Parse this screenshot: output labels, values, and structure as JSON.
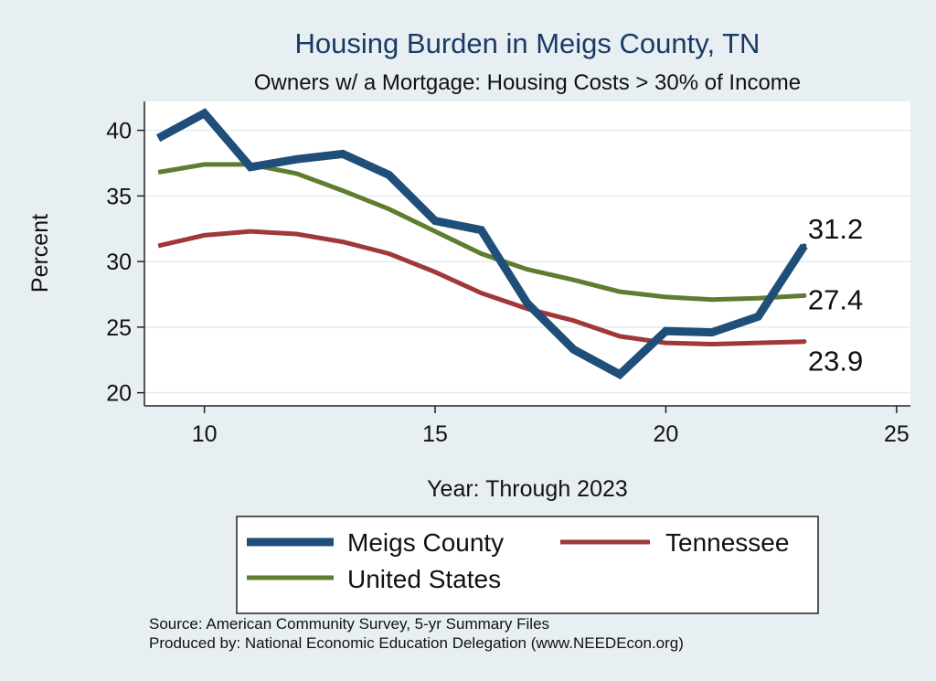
{
  "chart_data": {
    "type": "line",
    "title": "Housing Burden in Meigs County, TN",
    "subtitle": "Owners w/ a Mortgage: Housing Costs > 30% of Income",
    "xlabel": "Year: Through 2023",
    "ylabel": "Percent",
    "xlim": [
      8.7,
      25.3
    ],
    "ylim": [
      19.0,
      42.2
    ],
    "xticks": [
      10,
      15,
      20,
      25
    ],
    "yticks": [
      20,
      25,
      30,
      35,
      40
    ],
    "x": [
      9,
      10,
      11,
      12,
      13,
      14,
      15,
      16,
      17,
      18,
      19,
      20,
      21,
      22,
      23
    ],
    "series": [
      {
        "name": "Meigs County",
        "color": "#1f4e79",
        "values": [
          39.4,
          41.3,
          37.2,
          37.8,
          38.2,
          36.6,
          33.1,
          32.4,
          26.8,
          23.3,
          21.4,
          24.7,
          24.6,
          25.8,
          31.2
        ],
        "end_label": "31.2"
      },
      {
        "name": "Tennessee",
        "color": "#a0383a",
        "values": [
          31.2,
          32.0,
          32.3,
          32.1,
          31.5,
          30.6,
          29.2,
          27.6,
          26.4,
          25.5,
          24.3,
          23.8,
          23.7,
          23.8,
          23.9
        ],
        "end_label": "23.9"
      },
      {
        "name": "United States",
        "color": "#5e7d2f",
        "values": [
          36.8,
          37.4,
          37.4,
          36.7,
          35.4,
          34.0,
          32.3,
          30.6,
          29.4,
          28.6,
          27.7,
          27.3,
          27.1,
          27.2,
          27.4
        ],
        "end_label": "27.4"
      }
    ],
    "legend": {
      "position": "bottom",
      "items": [
        "Meigs County",
        "Tennessee",
        "United States"
      ]
    },
    "source": "Source: American Community Survey, 5-yr Summary Files",
    "producer": "Produced by: National Economic Education Delegation (www.NEEDEcon.org)"
  }
}
